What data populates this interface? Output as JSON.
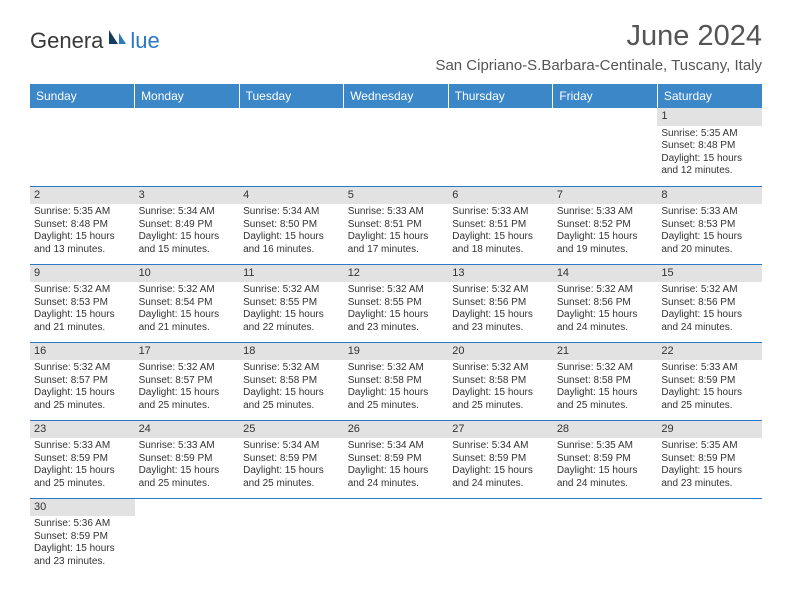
{
  "logo": {
    "text_dark": "Genera",
    "text_blue": "lue",
    "sail_color": "#2b78c5",
    "dark_color": "#3a3a3a"
  },
  "title": "June 2024",
  "location": "San Cipriano-S.Barbara-Centinale, Tuscany, Italy",
  "styles": {
    "header_bg": "#3b87c8",
    "header_text": "#ffffff",
    "cell_border": "#2b78c5",
    "daynum_bg": "#e2e2e2",
    "body_text": "#333333",
    "title_color": "#555555",
    "page_bg": "#ffffff",
    "title_fontsize": 29,
    "location_fontsize": 15,
    "header_fontsize": 12,
    "cell_fontsize": 10
  },
  "weekdays": [
    "Sunday",
    "Monday",
    "Tuesday",
    "Wednesday",
    "Thursday",
    "Friday",
    "Saturday"
  ],
  "weeks": [
    [
      null,
      null,
      null,
      null,
      null,
      null,
      {
        "day": "1",
        "sunrise": "Sunrise: 5:35 AM",
        "sunset": "Sunset: 8:48 PM",
        "daylight1": "Daylight: 15 hours",
        "daylight2": "and 12 minutes."
      }
    ],
    [
      {
        "day": "2",
        "sunrise": "Sunrise: 5:35 AM",
        "sunset": "Sunset: 8:48 PM",
        "daylight1": "Daylight: 15 hours",
        "daylight2": "and 13 minutes."
      },
      {
        "day": "3",
        "sunrise": "Sunrise: 5:34 AM",
        "sunset": "Sunset: 8:49 PM",
        "daylight1": "Daylight: 15 hours",
        "daylight2": "and 15 minutes."
      },
      {
        "day": "4",
        "sunrise": "Sunrise: 5:34 AM",
        "sunset": "Sunset: 8:50 PM",
        "daylight1": "Daylight: 15 hours",
        "daylight2": "and 16 minutes."
      },
      {
        "day": "5",
        "sunrise": "Sunrise: 5:33 AM",
        "sunset": "Sunset: 8:51 PM",
        "daylight1": "Daylight: 15 hours",
        "daylight2": "and 17 minutes."
      },
      {
        "day": "6",
        "sunrise": "Sunrise: 5:33 AM",
        "sunset": "Sunset: 8:51 PM",
        "daylight1": "Daylight: 15 hours",
        "daylight2": "and 18 minutes."
      },
      {
        "day": "7",
        "sunrise": "Sunrise: 5:33 AM",
        "sunset": "Sunset: 8:52 PM",
        "daylight1": "Daylight: 15 hours",
        "daylight2": "and 19 minutes."
      },
      {
        "day": "8",
        "sunrise": "Sunrise: 5:33 AM",
        "sunset": "Sunset: 8:53 PM",
        "daylight1": "Daylight: 15 hours",
        "daylight2": "and 20 minutes."
      }
    ],
    [
      {
        "day": "9",
        "sunrise": "Sunrise: 5:32 AM",
        "sunset": "Sunset: 8:53 PM",
        "daylight1": "Daylight: 15 hours",
        "daylight2": "and 21 minutes."
      },
      {
        "day": "10",
        "sunrise": "Sunrise: 5:32 AM",
        "sunset": "Sunset: 8:54 PM",
        "daylight1": "Daylight: 15 hours",
        "daylight2": "and 21 minutes."
      },
      {
        "day": "11",
        "sunrise": "Sunrise: 5:32 AM",
        "sunset": "Sunset: 8:55 PM",
        "daylight1": "Daylight: 15 hours",
        "daylight2": "and 22 minutes."
      },
      {
        "day": "12",
        "sunrise": "Sunrise: 5:32 AM",
        "sunset": "Sunset: 8:55 PM",
        "daylight1": "Daylight: 15 hours",
        "daylight2": "and 23 minutes."
      },
      {
        "day": "13",
        "sunrise": "Sunrise: 5:32 AM",
        "sunset": "Sunset: 8:56 PM",
        "daylight1": "Daylight: 15 hours",
        "daylight2": "and 23 minutes."
      },
      {
        "day": "14",
        "sunrise": "Sunrise: 5:32 AM",
        "sunset": "Sunset: 8:56 PM",
        "daylight1": "Daylight: 15 hours",
        "daylight2": "and 24 minutes."
      },
      {
        "day": "15",
        "sunrise": "Sunrise: 5:32 AM",
        "sunset": "Sunset: 8:56 PM",
        "daylight1": "Daylight: 15 hours",
        "daylight2": "and 24 minutes."
      }
    ],
    [
      {
        "day": "16",
        "sunrise": "Sunrise: 5:32 AM",
        "sunset": "Sunset: 8:57 PM",
        "daylight1": "Daylight: 15 hours",
        "daylight2": "and 25 minutes."
      },
      {
        "day": "17",
        "sunrise": "Sunrise: 5:32 AM",
        "sunset": "Sunset: 8:57 PM",
        "daylight1": "Daylight: 15 hours",
        "daylight2": "and 25 minutes."
      },
      {
        "day": "18",
        "sunrise": "Sunrise: 5:32 AM",
        "sunset": "Sunset: 8:58 PM",
        "daylight1": "Daylight: 15 hours",
        "daylight2": "and 25 minutes."
      },
      {
        "day": "19",
        "sunrise": "Sunrise: 5:32 AM",
        "sunset": "Sunset: 8:58 PM",
        "daylight1": "Daylight: 15 hours",
        "daylight2": "and 25 minutes."
      },
      {
        "day": "20",
        "sunrise": "Sunrise: 5:32 AM",
        "sunset": "Sunset: 8:58 PM",
        "daylight1": "Daylight: 15 hours",
        "daylight2": "and 25 minutes."
      },
      {
        "day": "21",
        "sunrise": "Sunrise: 5:32 AM",
        "sunset": "Sunset: 8:58 PM",
        "daylight1": "Daylight: 15 hours",
        "daylight2": "and 25 minutes."
      },
      {
        "day": "22",
        "sunrise": "Sunrise: 5:33 AM",
        "sunset": "Sunset: 8:59 PM",
        "daylight1": "Daylight: 15 hours",
        "daylight2": "and 25 minutes."
      }
    ],
    [
      {
        "day": "23",
        "sunrise": "Sunrise: 5:33 AM",
        "sunset": "Sunset: 8:59 PM",
        "daylight1": "Daylight: 15 hours",
        "daylight2": "and 25 minutes."
      },
      {
        "day": "24",
        "sunrise": "Sunrise: 5:33 AM",
        "sunset": "Sunset: 8:59 PM",
        "daylight1": "Daylight: 15 hours",
        "daylight2": "and 25 minutes."
      },
      {
        "day": "25",
        "sunrise": "Sunrise: 5:34 AM",
        "sunset": "Sunset: 8:59 PM",
        "daylight1": "Daylight: 15 hours",
        "daylight2": "and 25 minutes."
      },
      {
        "day": "26",
        "sunrise": "Sunrise: 5:34 AM",
        "sunset": "Sunset: 8:59 PM",
        "daylight1": "Daylight: 15 hours",
        "daylight2": "and 24 minutes."
      },
      {
        "day": "27",
        "sunrise": "Sunrise: 5:34 AM",
        "sunset": "Sunset: 8:59 PM",
        "daylight1": "Daylight: 15 hours",
        "daylight2": "and 24 minutes."
      },
      {
        "day": "28",
        "sunrise": "Sunrise: 5:35 AM",
        "sunset": "Sunset: 8:59 PM",
        "daylight1": "Daylight: 15 hours",
        "daylight2": "and 24 minutes."
      },
      {
        "day": "29",
        "sunrise": "Sunrise: 5:35 AM",
        "sunset": "Sunset: 8:59 PM",
        "daylight1": "Daylight: 15 hours",
        "daylight2": "and 23 minutes."
      }
    ],
    [
      {
        "day": "30",
        "sunrise": "Sunrise: 5:36 AM",
        "sunset": "Sunset: 8:59 PM",
        "daylight1": "Daylight: 15 hours",
        "daylight2": "and 23 minutes."
      },
      null,
      null,
      null,
      null,
      null,
      null
    ]
  ]
}
